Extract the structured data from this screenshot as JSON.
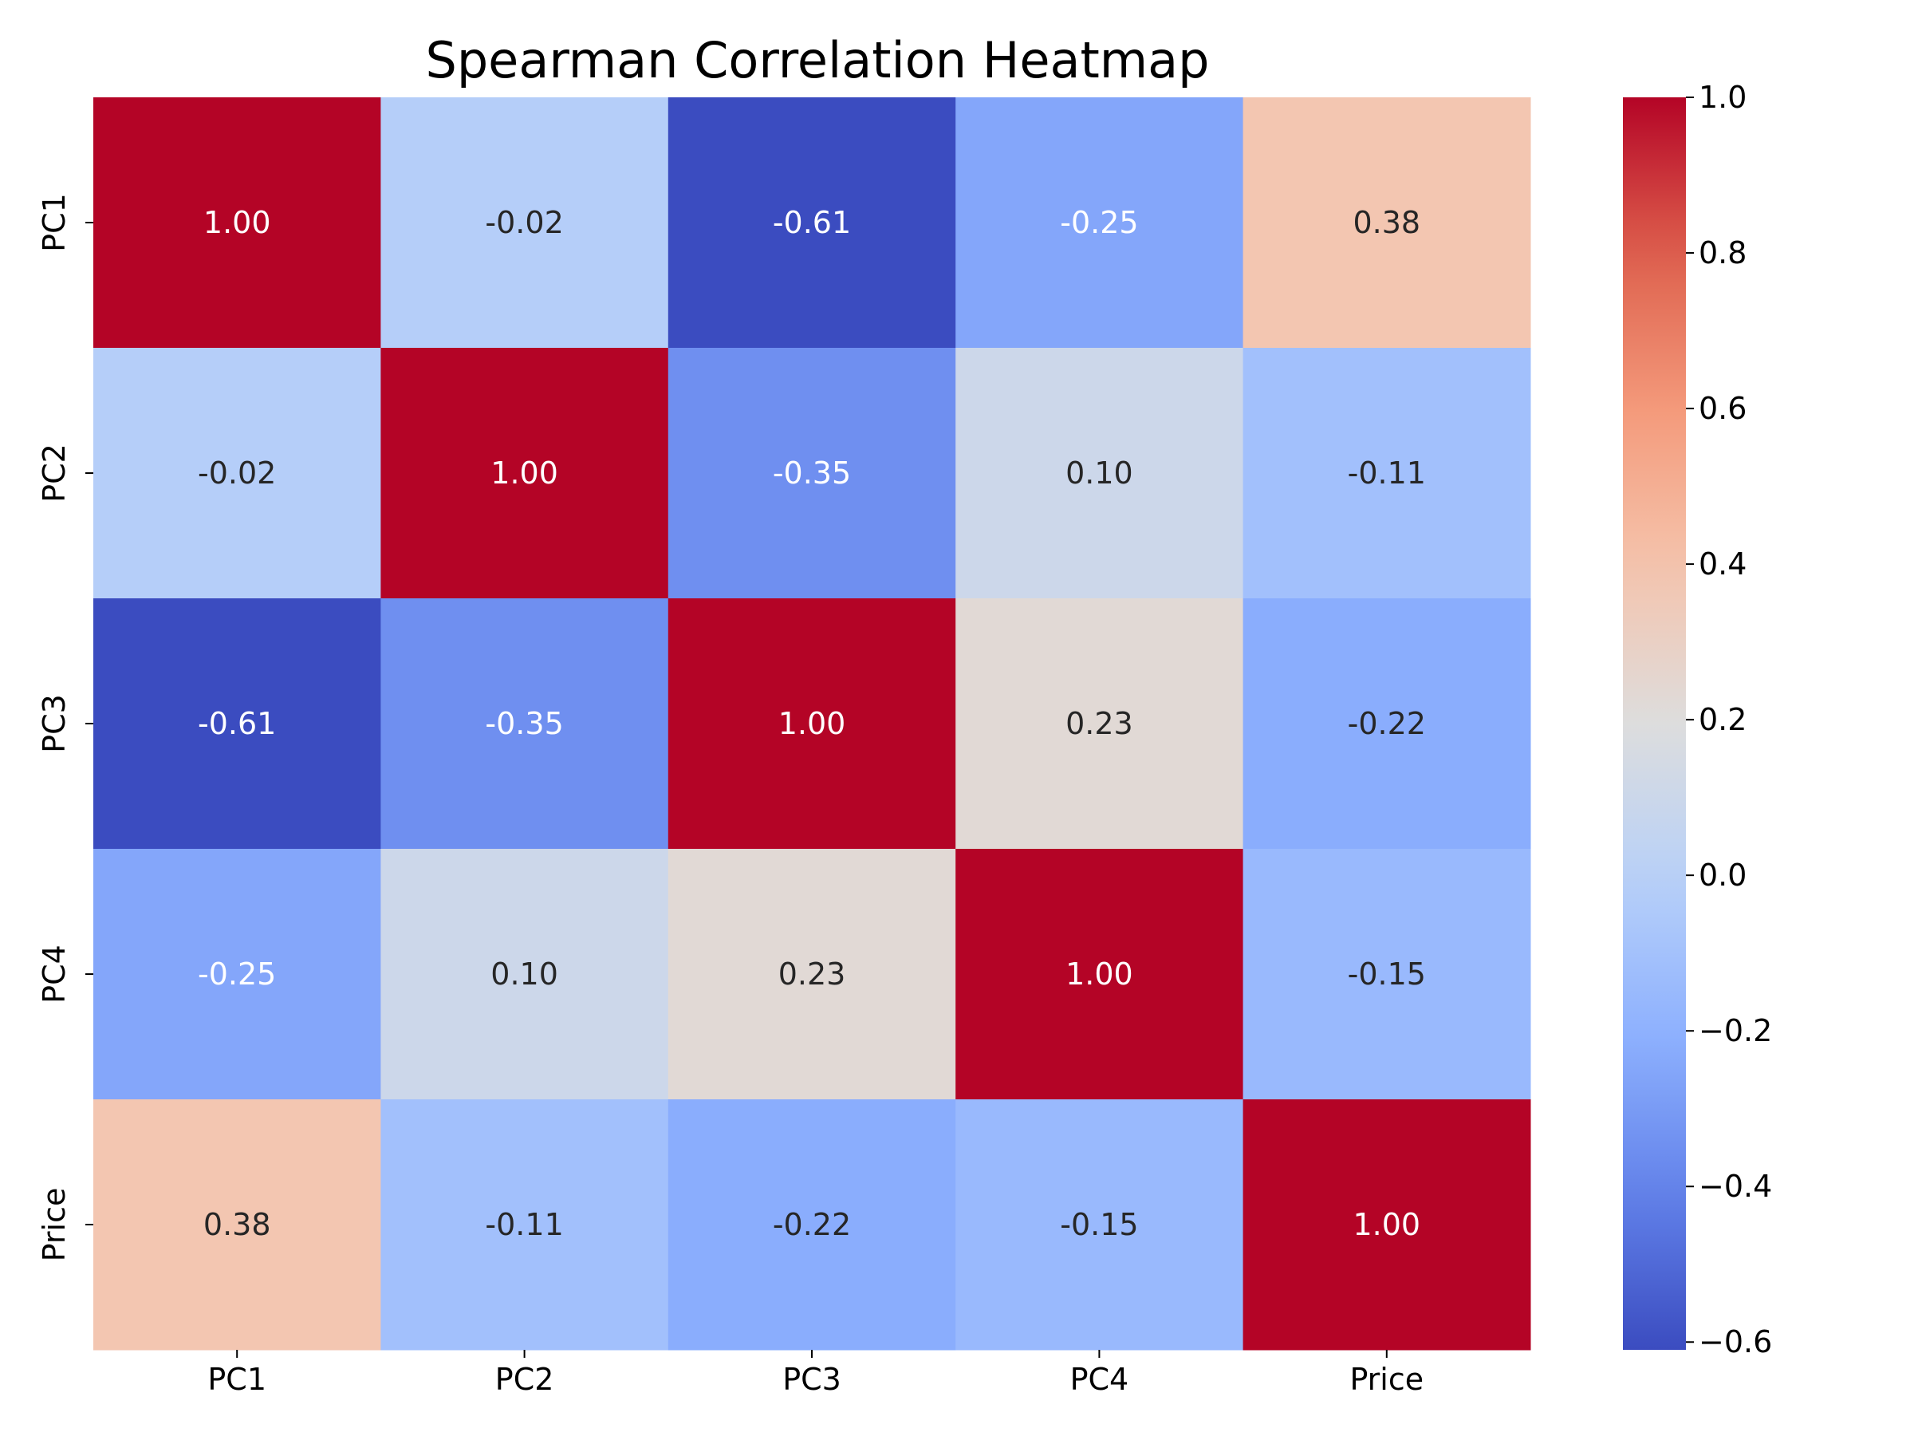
{
  "chart_data": {
    "type": "heatmap",
    "title": "Spearman Correlation Heatmap",
    "x_labels": [
      "PC1",
      "PC2",
      "PC3",
      "PC4",
      "Price"
    ],
    "y_labels": [
      "PC1",
      "PC2",
      "PC3",
      "PC4",
      "Price"
    ],
    "values": [
      [
        1.0,
        -0.02,
        -0.61,
        -0.25,
        0.38
      ],
      [
        -0.02,
        1.0,
        -0.35,
        0.1,
        -0.11
      ],
      [
        -0.61,
        -0.35,
        1.0,
        0.23,
        -0.22
      ],
      [
        -0.25,
        0.1,
        0.23,
        1.0,
        -0.15
      ],
      [
        0.38,
        -0.11,
        -0.22,
        -0.15,
        1.0
      ]
    ],
    "cell_labels": [
      [
        "1.00",
        "-0.02",
        "-0.61",
        "-0.25",
        "0.38"
      ],
      [
        "-0.02",
        "1.00",
        "-0.35",
        "0.10",
        "-0.11"
      ],
      [
        "-0.61",
        "-0.35",
        "1.00",
        "0.23",
        "-0.22"
      ],
      [
        "-0.25",
        "0.10",
        "0.23",
        "1.00",
        "-0.15"
      ],
      [
        "0.38",
        "-0.11",
        "-0.22",
        "-0.15",
        "1.00"
      ]
    ],
    "colormap": "coolwarm",
    "vmin": -0.61,
    "vmax": 1.0,
    "colorbar_ticks": [
      1.0,
      0.8,
      0.6,
      0.4,
      0.2,
      0.0,
      -0.2,
      -0.4,
      -0.6
    ],
    "colorbar_tick_labels": [
      "1.0",
      "0.8",
      "0.6",
      "0.4",
      "0.2",
      "0.0",
      "−0.2",
      "−0.4",
      "−0.6"
    ],
    "colorbar_placement": "right",
    "grid": false
  }
}
